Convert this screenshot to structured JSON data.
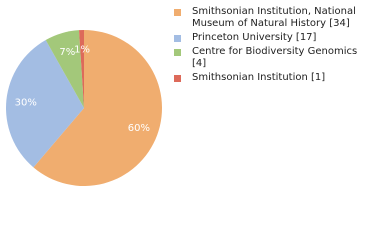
{
  "chart_data": {
    "type": "pie",
    "categories": [
      "Smithsonian Institution, National Museum of Natural History [34]",
      "Princeton University [17]",
      "Centre for Biodiversity Genomics [4]",
      "Smithsonian Institution [1]"
    ],
    "values": [
      60,
      30,
      7,
      1
    ],
    "value_labels": [
      "60%",
      "30%",
      "7%",
      "1%"
    ],
    "colors": [
      "#f0ad6f",
      "#a3bde3",
      "#a3c87a",
      "#dd6a5a"
    ]
  }
}
